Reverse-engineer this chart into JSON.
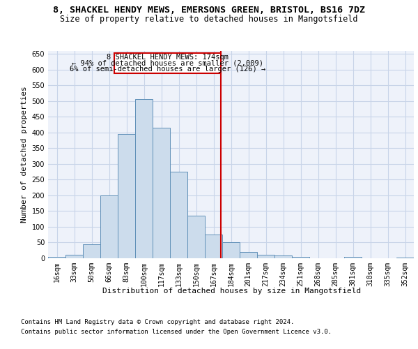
{
  "title_line1": "8, SHACKEL HENDY MEWS, EMERSONS GREEN, BRISTOL, BS16 7DZ",
  "title_line2": "Size of property relative to detached houses in Mangotsfield",
  "xlabel": "Distribution of detached houses by size in Mangotsfield",
  "ylabel": "Number of detached properties",
  "categories": [
    "16sqm",
    "33sqm",
    "50sqm",
    "66sqm",
    "83sqm",
    "100sqm",
    "117sqm",
    "133sqm",
    "150sqm",
    "167sqm",
    "184sqm",
    "201sqm",
    "217sqm",
    "234sqm",
    "251sqm",
    "268sqm",
    "285sqm",
    "301sqm",
    "318sqm",
    "335sqm",
    "352sqm"
  ],
  "values": [
    5,
    10,
    45,
    200,
    395,
    505,
    415,
    275,
    135,
    75,
    50,
    20,
    10,
    8,
    5,
    0,
    0,
    5,
    0,
    0,
    2
  ],
  "bar_color": "#ccdcec",
  "bar_edge_color": "#6090b8",
  "grid_color": "#c8d4e8",
  "background_color": "#eef2fa",
  "vline_color": "#cc0000",
  "annotation_text_line1": "8 SHACKEL HENDY MEWS: 174sqm",
  "annotation_text_line2": "← 94% of detached houses are smaller (2,009)",
  "annotation_text_line3": "6% of semi-detached houses are larger (126) →",
  "annotation_box_color": "#cc0000",
  "ylim": [
    0,
    660
  ],
  "yticks": [
    0,
    50,
    100,
    150,
    200,
    250,
    300,
    350,
    400,
    450,
    500,
    550,
    600,
    650
  ],
  "footnote1": "Contains HM Land Registry data © Crown copyright and database right 2024.",
  "footnote2": "Contains public sector information licensed under the Open Government Licence v3.0.",
  "title_fontsize": 9.5,
  "subtitle_fontsize": 8.5,
  "ylabel_fontsize": 8,
  "xlabel_fontsize": 8,
  "tick_fontsize": 7,
  "annotation_fontsize": 7.5,
  "footnote_fontsize": 6.5
}
